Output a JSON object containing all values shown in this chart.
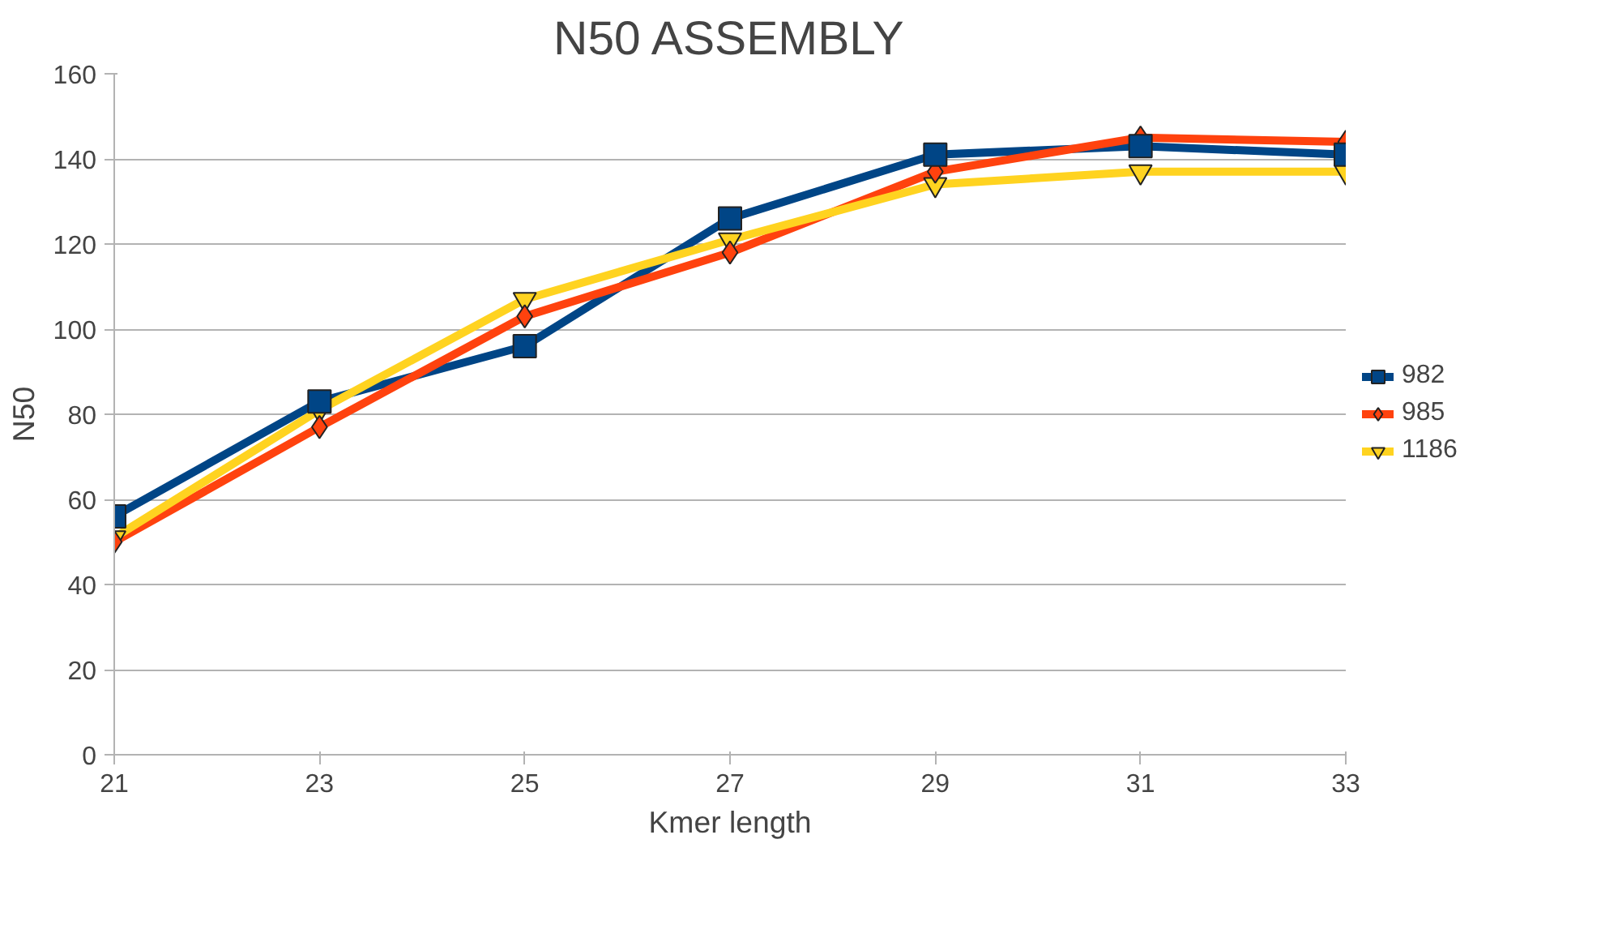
{
  "chart_data": {
    "type": "line",
    "title": "N50 ASSEMBLY",
    "xlabel": "Kmer length",
    "ylabel": "N50",
    "categories": [
      "21",
      "23",
      "25",
      "27",
      "29",
      "31",
      "33"
    ],
    "ylim": [
      0,
      160
    ],
    "yticks": [
      0,
      20,
      40,
      60,
      80,
      100,
      120,
      140,
      160
    ],
    "grid": "y",
    "legend": "right",
    "line_style": "solid",
    "series": [
      {
        "name": "982",
        "color": "#004586",
        "marker": "square",
        "values": [
          56,
          83,
          96,
          126,
          141,
          143,
          141
        ]
      },
      {
        "name": "985",
        "color": "#ff420e",
        "marker": "diamond",
        "values": [
          50,
          77,
          103,
          118,
          137,
          145,
          144
        ]
      },
      {
        "name": "1186",
        "color": "#ffd320",
        "marker": "triangle",
        "values": [
          51,
          81,
          107,
          121,
          134,
          137,
          137
        ]
      }
    ]
  }
}
